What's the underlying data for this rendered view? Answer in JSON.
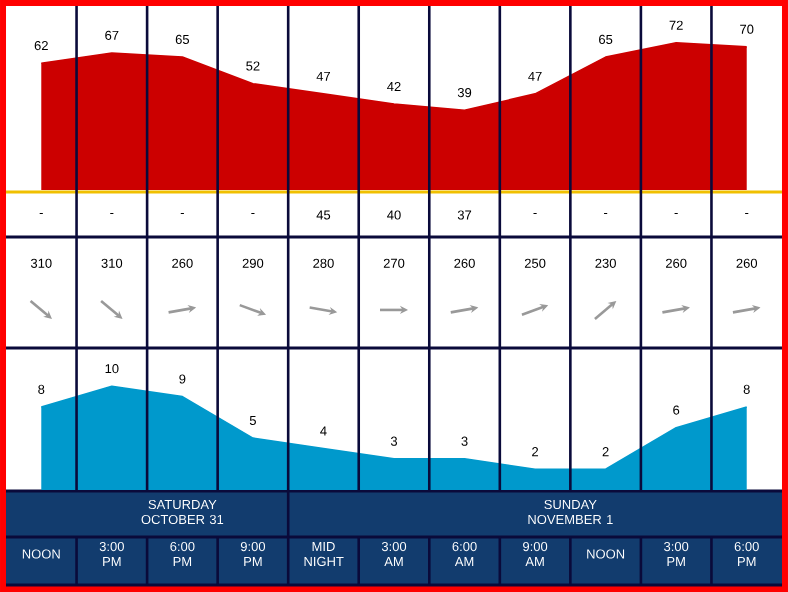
{
  "chart_data": [
    {
      "type": "area",
      "categories": [
        null,
        null,
        null,
        null,
        null,
        null,
        null,
        null,
        null,
        null,
        null
      ],
      "values": [
        62,
        67,
        65,
        52,
        47,
        42,
        39,
        47,
        65,
        72,
        70
      ],
      "color": "#cc0000",
      "ylim": [
        0,
        90
      ],
      "data_labels": true,
      "tick_labels": false
    },
    {
      "type": "other",
      "annotations": [
        "-",
        "-",
        "-",
        "-",
        "45",
        "40",
        "37",
        "-",
        "-",
        "-",
        "-"
      ]
    },
    {
      "type": "other",
      "categories": [
        null,
        null,
        null,
        null,
        null,
        null,
        null,
        null,
        null,
        null,
        null
      ],
      "values": [
        310,
        310,
        260,
        290,
        280,
        270,
        260,
        250,
        230,
        260,
        260
      ],
      "color": "#999999",
      "data_labels": true
    },
    {
      "type": "area",
      "categories": [
        "NOON",
        "3:00 PM",
        "6:00 PM",
        "9:00 PM",
        "MID NIGHT",
        "3:00 AM",
        "6:00 AM",
        "9:00 AM",
        "NOON",
        "3:00 PM",
        "6:00 PM"
      ],
      "values": [
        8,
        10,
        9,
        5,
        4,
        3,
        3,
        2,
        2,
        6,
        8
      ],
      "color": "#0099cc",
      "ylim": [
        0,
        13.5
      ],
      "data_labels": true,
      "tick_labels": "x",
      "annotations": [
        "SATURDAY OCTOBER 31",
        "SUNDAY NOVEMBER 1"
      ]
    }
  ]
}
